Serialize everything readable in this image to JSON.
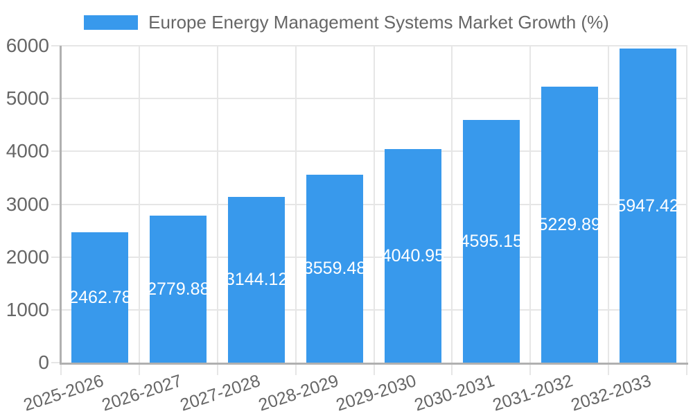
{
  "chart_data": {
    "type": "bar",
    "title": "Europe Energy Management Systems Market Growth (%)",
    "legend": {
      "label": "Europe Energy Management Systems Market Growth (%)",
      "position": "top"
    },
    "categories": [
      "2025-2026",
      "2026-2027",
      "2027-2028",
      "2028-2029",
      "2029-2030",
      "2030-2031",
      "2031-2032",
      "2032-2033"
    ],
    "series": [
      {
        "name": "Europe Energy Management Systems Market Growth (%)",
        "values": [
          2462.78,
          2779.88,
          3144.12,
          3559.48,
          4040.95,
          4595.15,
          5229.89,
          5947.42
        ]
      }
    ],
    "value_labels": [
      "2462.78",
      "2779.88",
      "3144.12",
      "3559.48",
      "4040.95",
      "4595.15",
      "5229.89",
      "5947.42"
    ],
    "xlabel": "",
    "ylabel": "",
    "ylim": [
      0,
      6000
    ],
    "yticks": [
      0,
      1000,
      2000,
      3000,
      4000,
      5000,
      6000
    ],
    "grid": true,
    "x_label_rotation_deg": -18,
    "legend_position": "top",
    "style": {
      "bar_color": "#3899EC",
      "grid_color": "#E6E6E6",
      "axis_line_color": "#B0B0B0",
      "text_color": "#666666",
      "value_label_color": "#FFFFFF",
      "background_color": "#FFFFFF"
    }
  }
}
